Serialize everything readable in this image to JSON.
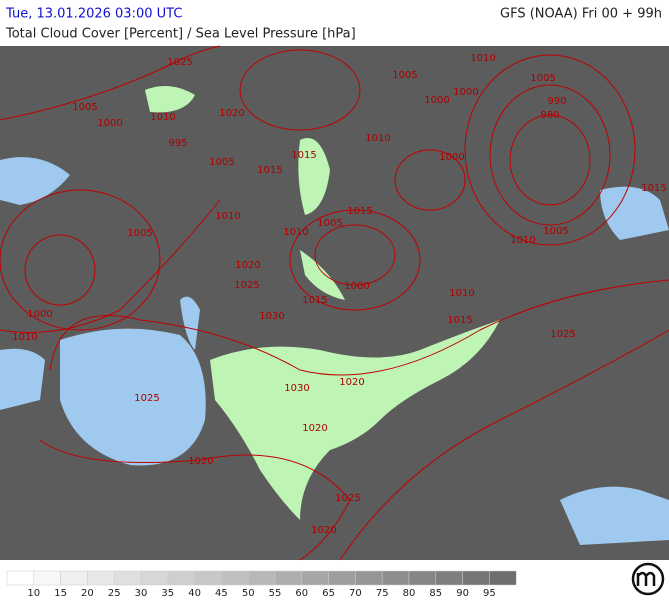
{
  "header": {
    "datetime": "Tue, 13.01.2026 03:00 UTC",
    "model": "GFS (NOAA) Fri 00 + 99h",
    "subtitle": "Total Cloud Cover [Percent] / Sea Level Pressure [hPa]"
  },
  "isobar_labels": [
    "1025",
    "1005",
    "1000",
    "1010",
    "1020",
    "995",
    "1005",
    "1015",
    "1015",
    "1010",
    "1000",
    "1005",
    "1010",
    "1000",
    "1000",
    "1005",
    "990",
    "980",
    "1015",
    "1015",
    "1005",
    "1010",
    "1010",
    "1005",
    "1000",
    "1010",
    "1020",
    "1025",
    "1015",
    "1030",
    "1000",
    "1010",
    "1015",
    "1010",
    "1005",
    "1025",
    "1020",
    "1030",
    "1025",
    "1020",
    "1020",
    "1025",
    "1020"
  ],
  "legend": {
    "labels": [
      "10",
      "15",
      "20",
      "25",
      "30",
      "35",
      "40",
      "45",
      "50",
      "55",
      "60",
      "65",
      "70",
      "75",
      "80",
      "85",
      "90",
      "95"
    ]
  }
}
